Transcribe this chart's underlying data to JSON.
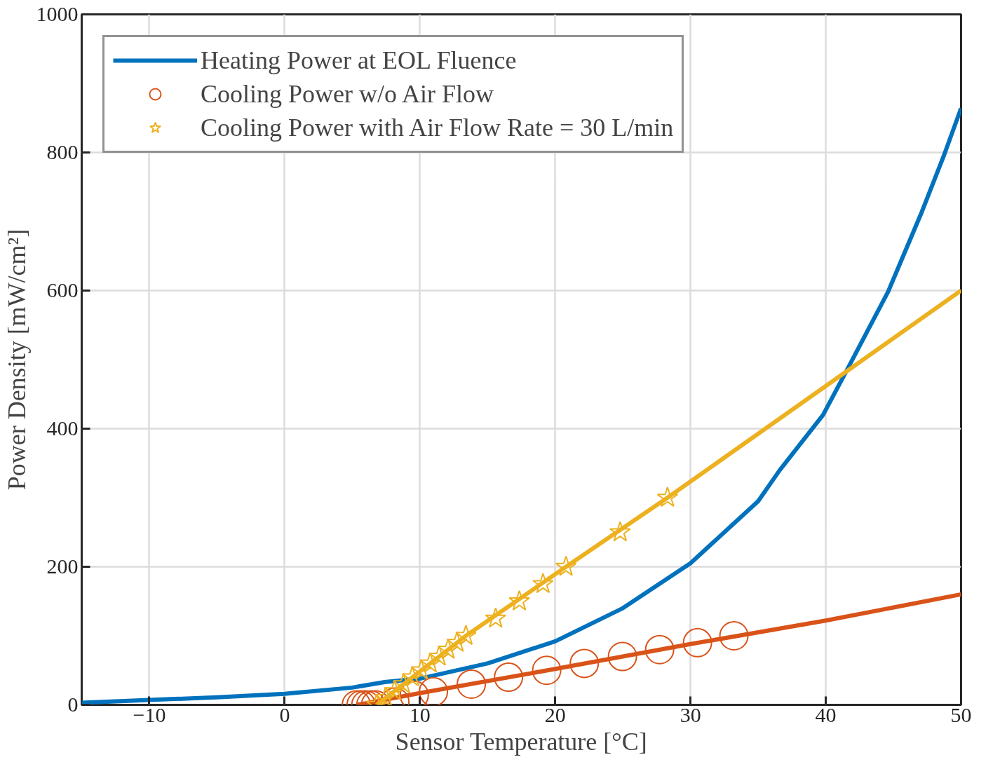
{
  "chart_data": {
    "type": "line",
    "xlabel": "Sensor Temperature [°C]",
    "ylabel": "Power Density [mW/cm²]",
    "xlim": [
      -15,
      50
    ],
    "ylim": [
      0,
      1000
    ],
    "xticks": [
      -10,
      0,
      10,
      20,
      30,
      40,
      50
    ],
    "yticks": [
      0,
      200,
      400,
      600,
      800,
      1000
    ],
    "grid": true,
    "legend": "top left",
    "series": [
      {
        "name": "Heating Power at EOL Fluence",
        "color": "#0072bd",
        "marker": "none",
        "x": [
          -15,
          -10,
          -5,
          0,
          5,
          7.4,
          10,
          15,
          20,
          25,
          30,
          35,
          36.6,
          39.8,
          41.7,
          44.6,
          47.1,
          48.7,
          50
        ],
        "values": [
          3,
          7,
          11,
          16,
          25,
          33,
          38,
          60,
          92,
          140,
          205,
          295,
          340,
          420,
          490,
          598,
          714,
          794,
          864
        ]
      },
      {
        "name": "Cooling Power w/o Air Flow",
        "type": "scatter",
        "color": "#d95319",
        "marker": "circle",
        "x": [
          5.3,
          5.65,
          6.0,
          6.37,
          6.72,
          8.15,
          9.58,
          11.0,
          13.8,
          16.55,
          19.37,
          22.15,
          24.97,
          27.72,
          30.52,
          33.21
        ],
        "values": [
          0,
          0,
          0,
          0,
          0,
          4,
          14,
          19,
          30,
          40,
          50,
          60,
          70,
          80,
          90,
          100
        ]
      },
      {
        "color": "#d95319",
        "marker": "none",
        "x": [
          5.4,
          10,
          20,
          30,
          40,
          50
        ],
        "values": [
          0,
          17,
          52,
          88,
          122,
          160
        ]
      },
      {
        "name": "Cooling Power with Air Flow Rate = 30 L/min",
        "type": "scatter",
        "color": "#edb120",
        "marker": "star",
        "x": [
          6.8,
          7.46,
          8.12,
          8.78,
          9.44,
          10.1,
          10.76,
          11.42,
          12.08,
          12.74,
          13.4,
          15.6,
          17.35,
          19.1,
          20.8,
          24.8,
          28.3
        ],
        "values": [
          0,
          10,
          20,
          30,
          40,
          50,
          60,
          70,
          80,
          90,
          100,
          125,
          150,
          175,
          200,
          250,
          300
        ]
      },
      {
        "color": "#edb120",
        "marker": "none",
        "x": [
          6.8,
          13.4,
          20.8,
          28.3,
          50
        ],
        "values": [
          0,
          100,
          200,
          300,
          600
        ]
      }
    ]
  }
}
